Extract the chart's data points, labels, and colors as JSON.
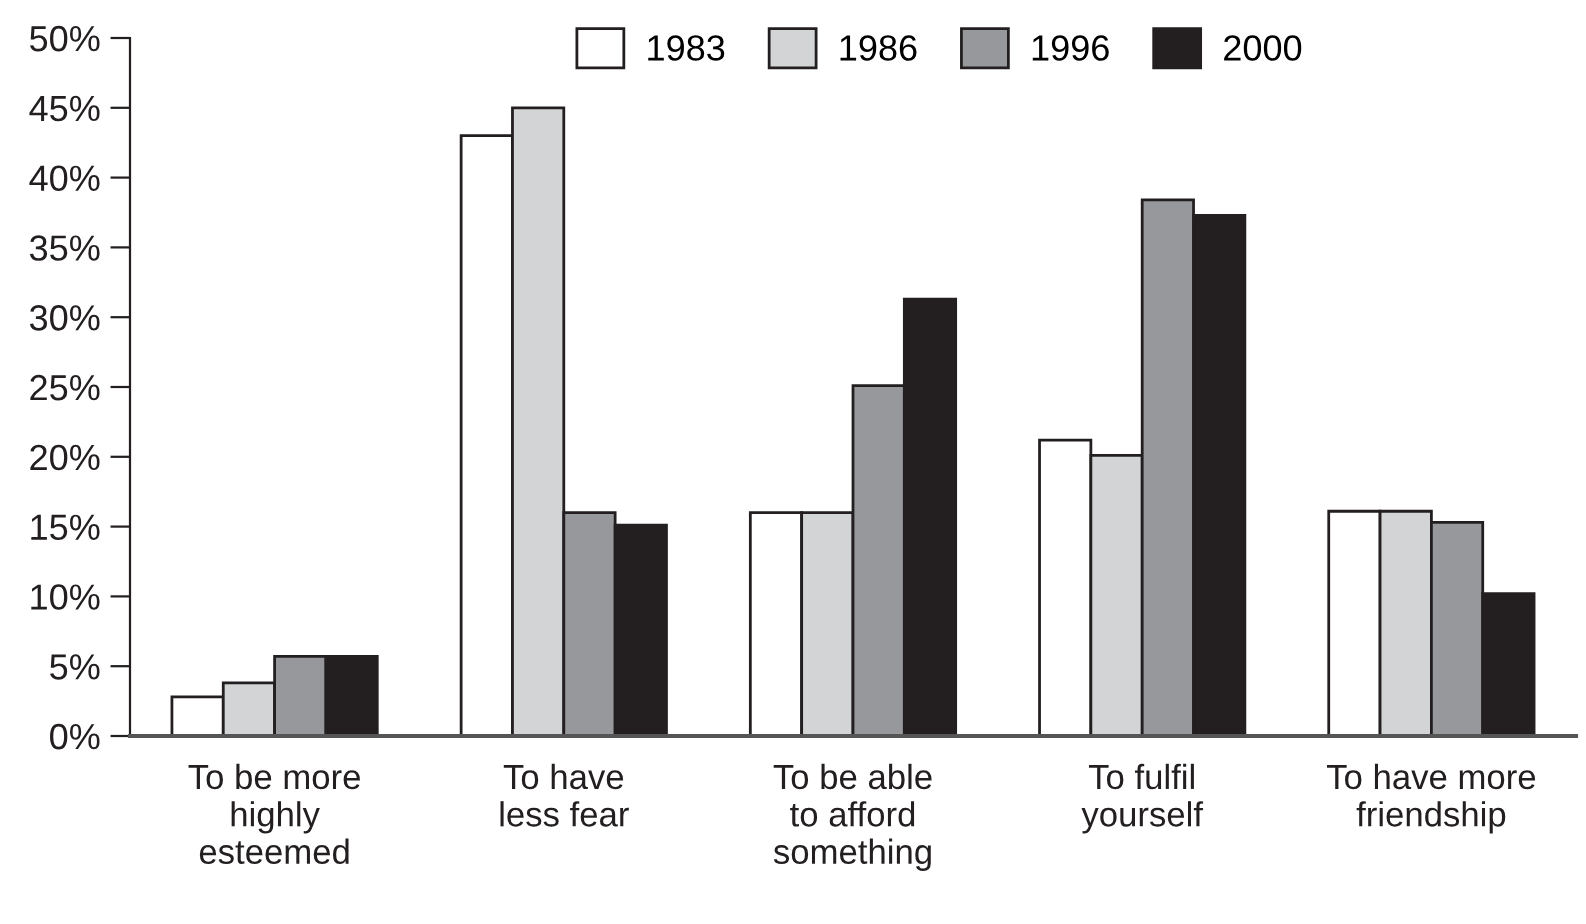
{
  "chart_data": {
    "type": "bar",
    "categories": [
      "To be more\nhighly\nesteemed",
      "To have\nless fear",
      "To be able\nto afford\nsomething",
      "To fulfil\nyourself",
      "To have more\nfriendship"
    ],
    "series": [
      {
        "name": "1983",
        "color": "#ffffff",
        "values": [
          2.8,
          43,
          16,
          21.2,
          16.1
        ]
      },
      {
        "name": "1986",
        "color": "#d3d4d6",
        "values": [
          3.8,
          45,
          16,
          20.1,
          16.1
        ]
      },
      {
        "name": "1996",
        "color": "#97989b",
        "values": [
          5.7,
          16,
          25.1,
          38.4,
          15.3
        ]
      },
      {
        "name": "2000",
        "color": "#231f20",
        "values": [
          5.7,
          15.1,
          31.3,
          37.3,
          10.2
        ]
      }
    ],
    "ylim": [
      0,
      50
    ],
    "yticks": [
      {
        "value": 0,
        "label": "0%"
      },
      {
        "value": 5,
        "label": "5%"
      },
      {
        "value": 10,
        "label": "10%"
      },
      {
        "value": 15,
        "label": "15%"
      },
      {
        "value": 20,
        "label": "20%"
      },
      {
        "value": 25,
        "label": "25%"
      },
      {
        "value": 30,
        "label": "30%"
      },
      {
        "value": 35,
        "label": "35%"
      },
      {
        "value": 40,
        "label": "40%"
      },
      {
        "value": 45,
        "label": "45%"
      },
      {
        "value": 50,
        "label": "50%"
      }
    ],
    "legend": "top",
    "grid": false
  }
}
